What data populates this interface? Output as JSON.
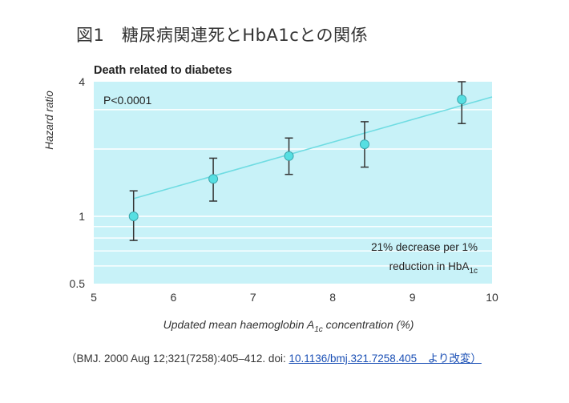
{
  "figure_title": "図1　糖尿病関連死とHbA1cとの関係",
  "citation": {
    "prefix": "（BMJ. 2000 Aug 12;321(7258):405–412. doi: ",
    "link_text": "10.1136/bmj.321.7258.405　より改変）"
  },
  "chart_data": {
    "type": "scatter",
    "title": "Death related to diabetes",
    "p_value_label": "P<0.0001",
    "xlabel_main": "Updated mean haemoglobin A",
    "xlabel_sub": "1c",
    "xlabel_tail": " concentration (%)",
    "ylabel": "Hazard ratio",
    "x_ticks": [
      "5",
      "6",
      "7",
      "8",
      "9",
      "10"
    ],
    "y_ticks": [
      "0.5",
      "1",
      "4"
    ],
    "xlim": [
      5,
      10
    ],
    "ylim": [
      0.5,
      4
    ],
    "y_scale": "log",
    "annotation_line1": "21% decrease per 1%",
    "annotation_line2_main": "reduction in HbA",
    "annotation_line2_sub": "1c",
    "points": [
      {
        "x": 5.5,
        "y": 1.0,
        "lo": 0.78,
        "hi": 1.3
      },
      {
        "x": 6.5,
        "y": 1.47,
        "lo": 1.17,
        "hi": 1.82
      },
      {
        "x": 7.45,
        "y": 1.86,
        "lo": 1.54,
        "hi": 2.24
      },
      {
        "x": 8.4,
        "y": 2.1,
        "lo": 1.66,
        "hi": 2.65
      },
      {
        "x": 9.62,
        "y": 3.33,
        "lo": 2.6,
        "hi": 4.0
      }
    ],
    "trend_line": {
      "x": [
        5.5,
        10
      ],
      "y": [
        1.2,
        3.42
      ]
    },
    "colors": {
      "plot_bg": "#c8f2f8",
      "grid": "#ffffff",
      "marker": "#56dfe2",
      "marker_edge": "#3aa6ad",
      "trend": "#6fdce2",
      "error_bar": "#333333"
    }
  }
}
